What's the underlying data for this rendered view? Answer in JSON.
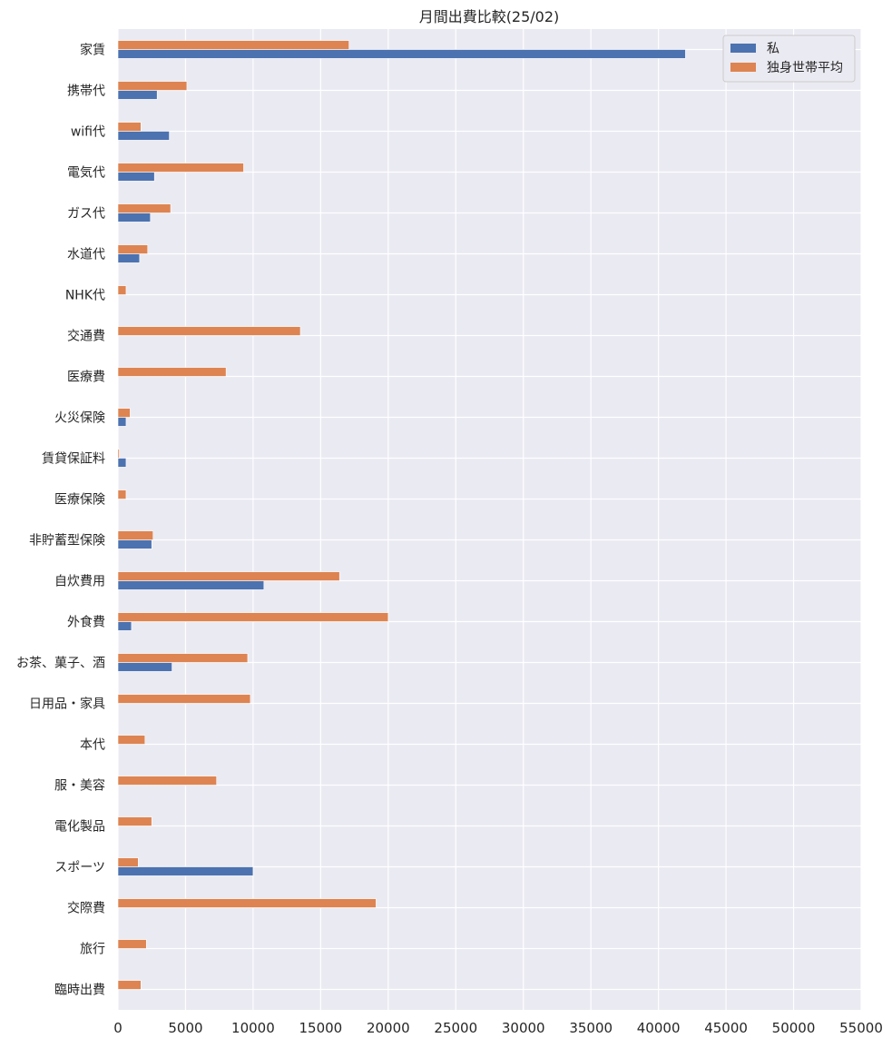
{
  "chart_data": {
    "type": "bar",
    "orientation": "horizontal",
    "title": "月間出費比較(25/02)",
    "xlabel": "",
    "ylabel": "",
    "xlim": [
      0,
      55000
    ],
    "xticks": [
      0,
      5000,
      10000,
      15000,
      20000,
      25000,
      30000,
      35000,
      40000,
      45000,
      50000,
      55000
    ],
    "grid": true,
    "legend_position": "top-right",
    "categories": [
      "家賃",
      "携帯代",
      "wifi代",
      "電気代",
      "ガス代",
      "水道代",
      "NHK代",
      "交通費",
      "医療費",
      "火災保険",
      "賃貸保証料",
      "医療保険",
      "非貯蓄型保険",
      "自炊費用",
      "外食費",
      "お茶、菓子、酒",
      "日用品・家具",
      "本代",
      "服・美容",
      "電化製品",
      "スポーツ",
      "交際費",
      "旅行",
      "臨時出費"
    ],
    "series": [
      {
        "name": "私",
        "color": "#4c72b0",
        "values": [
          42000,
          2900,
          3800,
          2700,
          2400,
          1600,
          0,
          0,
          0,
          600,
          600,
          0,
          2500,
          10800,
          1000,
          4000,
          0,
          0,
          0,
          0,
          10000,
          0,
          0,
          0
        ]
      },
      {
        "name": "独身世帯平均",
        "color": "#dd8452",
        "values": [
          17100,
          5100,
          1700,
          9300,
          3900,
          2200,
          600,
          13500,
          8000,
          900,
          100,
          600,
          2600,
          16400,
          20000,
          9600,
          9800,
          2000,
          7300,
          2500,
          1500,
          19100,
          2100,
          1700
        ]
      }
    ]
  }
}
